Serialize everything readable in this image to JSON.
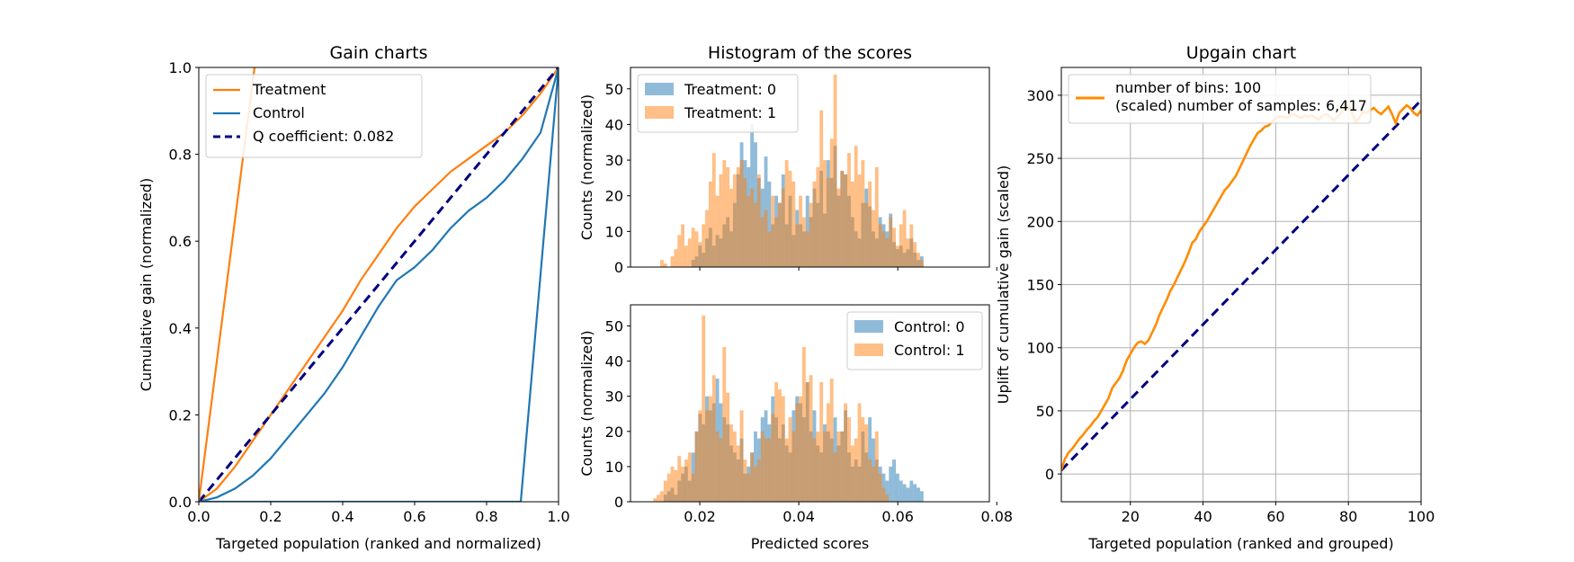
{
  "chart_data": [
    {
      "type": "line",
      "title": "Gain charts",
      "xlabel": "Targeted population (ranked and normalized)",
      "ylabel": "Cumulative gain (normalized)",
      "xlim": [
        0,
        1
      ],
      "ylim": [
        0,
        1
      ],
      "xticks": [
        "0.0",
        "0.2",
        "0.4",
        "0.6",
        "0.8",
        "1.0"
      ],
      "yticks": [
        "0.0",
        "0.2",
        "0.4",
        "0.6",
        "0.8",
        "1.0"
      ],
      "legend_position": "upper-left",
      "legend": [
        "Treatment",
        "Control",
        "Q coefficient:  0.082"
      ],
      "colors": {
        "treatment": "#ff7f0e",
        "control": "#1f77b4",
        "q": "#000080"
      },
      "series": [
        {
          "name": "Treatment",
          "role": "treatment-curve",
          "x": [
            0,
            0.05,
            0.1,
            0.15,
            0.2,
            0.25,
            0.3,
            0.35,
            0.4,
            0.45,
            0.5,
            0.55,
            0.6,
            0.65,
            0.7,
            0.75,
            0.8,
            0.85,
            0.9,
            0.95,
            1.0
          ],
          "y": [
            0,
            0.03,
            0.08,
            0.14,
            0.2,
            0.26,
            0.32,
            0.38,
            0.44,
            0.51,
            0.57,
            0.63,
            0.68,
            0.72,
            0.76,
            0.79,
            0.82,
            0.85,
            0.89,
            0.94,
            1.0
          ]
        },
        {
          "name": "Control",
          "role": "control-curve",
          "x": [
            0,
            0.05,
            0.1,
            0.15,
            0.2,
            0.25,
            0.3,
            0.35,
            0.4,
            0.45,
            0.5,
            0.55,
            0.6,
            0.65,
            0.7,
            0.75,
            0.8,
            0.85,
            0.9,
            0.95,
            1.0
          ],
          "y": [
            0,
            0.01,
            0.03,
            0.06,
            0.1,
            0.15,
            0.2,
            0.25,
            0.31,
            0.38,
            0.45,
            0.51,
            0.54,
            0.58,
            0.63,
            0.67,
            0.7,
            0.74,
            0.79,
            0.85,
            1.0
          ]
        },
        {
          "name": "Q coefficient:  0.082",
          "role": "diagonal",
          "x": [
            0,
            1
          ],
          "y": [
            0,
            1
          ]
        },
        {
          "name": "",
          "role": "treatment-ideal",
          "x": [
            0,
            0.155
          ],
          "y": [
            0,
            1
          ]
        },
        {
          "name": "",
          "role": "control-ideal",
          "x": [
            0,
            0.895,
            1.0
          ],
          "y": [
            0,
            0,
            1
          ]
        }
      ]
    },
    {
      "type": "histogram",
      "title": "Histogram of the scores",
      "xlabel": "",
      "ylabel": "Counts (normalized)",
      "xlim": [
        0.006,
        0.0785
      ],
      "ylim": [
        0,
        56
      ],
      "yticks": [
        "0",
        "10",
        "20",
        "30",
        "40",
        "50"
      ],
      "legend_position": "upper-left",
      "legend": [
        "Treatment: 0",
        "Treatment: 1"
      ],
      "bin_start": 0.0085,
      "bin_width": 0.0007,
      "series": [
        {
          "name": "Treatment: 0",
          "color": "#1f77b4",
          "values": [
            0,
            0,
            0,
            0,
            0,
            0,
            0,
            0,
            0,
            0,
            0,
            0,
            0,
            0,
            2,
            3,
            6,
            4,
            8,
            11,
            6,
            9,
            8,
            12,
            14,
            10,
            18,
            26,
            35,
            30,
            28,
            40,
            35,
            25,
            22,
            31,
            24,
            12,
            20,
            18,
            26,
            12,
            20,
            9,
            16,
            12,
            10,
            20,
            14,
            22,
            18,
            27,
            15,
            30,
            25,
            34,
            20,
            27,
            26,
            20,
            14,
            10,
            8,
            18,
            22,
            17,
            10,
            8,
            14,
            12,
            10,
            15,
            7,
            5,
            6,
            4,
            5,
            8,
            4,
            2,
            3
          ]
        },
        {
          "name": "Treatment: 1",
          "color": "#ff7f0e",
          "values": [
            0,
            0,
            0,
            0,
            0,
            2,
            1,
            0,
            3,
            5,
            9,
            12,
            6,
            8,
            11,
            10,
            7,
            12,
            16,
            24,
            32,
            20,
            26,
            30,
            28,
            22,
            26,
            28,
            30,
            25,
            20,
            22,
            18,
            26,
            14,
            16,
            10,
            20,
            14,
            18,
            22,
            30,
            27,
            24,
            12,
            20,
            14,
            10,
            18,
            24,
            28,
            44,
            30,
            25,
            36,
            54,
            22,
            27,
            26,
            32,
            24,
            34,
            26,
            30,
            18,
            24,
            16,
            28,
            12,
            10,
            8,
            14,
            11,
            6,
            12,
            16,
            8,
            12,
            7,
            4,
            2
          ]
        }
      ]
    },
    {
      "type": "histogram",
      "title": "",
      "xlabel": "Predicted scores",
      "ylabel": "Counts (normalized)",
      "xlim": [
        0.006,
        0.0785
      ],
      "ylim": [
        0,
        56
      ],
      "xticks": [
        "0.02",
        "0.04",
        "0.06",
        "0.08"
      ],
      "yticks": [
        "0",
        "10",
        "20",
        "30",
        "40",
        "50"
      ],
      "legend_position": "upper-right",
      "legend": [
        "Control: 0",
        "Control: 1"
      ],
      "bin_start": 0.0085,
      "bin_width": 0.0007,
      "series": [
        {
          "name": "Control: 0",
          "color": "#1f77b4",
          "values": [
            0,
            0,
            0,
            0,
            0,
            0,
            2,
            3,
            4,
            2,
            6,
            8,
            10,
            6,
            14,
            20,
            25,
            22,
            30,
            26,
            28,
            35,
            28,
            24,
            22,
            16,
            14,
            12,
            18,
            8,
            10,
            14,
            20,
            18,
            24,
            26,
            22,
            30,
            24,
            18,
            22,
            16,
            14,
            26,
            30,
            28,
            24,
            34,
            20,
            26,
            16,
            14,
            22,
            20,
            18,
            24,
            16,
            20,
            26,
            14,
            10,
            12,
            10,
            20,
            14,
            24,
            18,
            12,
            10,
            8,
            6,
            10,
            12,
            8,
            6,
            5,
            4,
            6,
            5,
            4,
            3
          ]
        },
        {
          "name": "Control: 1",
          "color": "#ff7f0e",
          "values": [
            0,
            0,
            0,
            1,
            2,
            3,
            6,
            8,
            10,
            9,
            13,
            10,
            12,
            14,
            8,
            20,
            26,
            53,
            26,
            30,
            36,
            20,
            18,
            44,
            31,
            22,
            20,
            16,
            26,
            12,
            8,
            14,
            10,
            12,
            20,
            18,
            18,
            25,
            34,
            32,
            30,
            18,
            24,
            20,
            28,
            30,
            44,
            34,
            36,
            18,
            20,
            34,
            20,
            28,
            35,
            14,
            20,
            20,
            28,
            24,
            16,
            18,
            28,
            24,
            22,
            12,
            10,
            20,
            8,
            4,
            2,
            0,
            0,
            0,
            0,
            0,
            0,
            0,
            0,
            0,
            0
          ]
        }
      ]
    },
    {
      "type": "line",
      "title": "Upgain chart",
      "xlabel": "Targeted population (ranked and grouped)",
      "ylabel": "Uplift of cumulative gain (scaled)",
      "xlim": [
        1,
        100
      ],
      "ylim": [
        -22,
        322
      ],
      "xticks": [
        "20",
        "40",
        "60",
        "80",
        "100"
      ],
      "yticks": [
        "0",
        "50",
        "100",
        "150",
        "200",
        "250",
        "300"
      ],
      "grid": true,
      "legend_position": "upper-left",
      "legend": [
        "number of bins: 100\n(scaled) number of samples: 6,417"
      ],
      "series": [
        {
          "name": "number of bins: 100",
          "color": "#ff8c00",
          "x": [
            1,
            2,
            3,
            4,
            5,
            6,
            7,
            8,
            9,
            10,
            11,
            12,
            13,
            14,
            15,
            16,
            17,
            18,
            19,
            20,
            21,
            22,
            23,
            24,
            25,
            26,
            27,
            28,
            29,
            30,
            31,
            32,
            33,
            34,
            35,
            36,
            37,
            38,
            39,
            40,
            41,
            42,
            43,
            44,
            45,
            46,
            47,
            48,
            49,
            50,
            51,
            52,
            53,
            54,
            55,
            56,
            57,
            58,
            59,
            60,
            61,
            62,
            63,
            64,
            65,
            66,
            67,
            68,
            69,
            70,
            71,
            72,
            73,
            74,
            75,
            76,
            77,
            78,
            79,
            80,
            81,
            82,
            83,
            84,
            85,
            86,
            87,
            88,
            89,
            90,
            91,
            92,
            93,
            94,
            95,
            96,
            97,
            98,
            99,
            100
          ],
          "y": [
            3,
            12,
            17,
            20,
            24,
            28,
            31,
            35,
            38,
            42,
            45,
            50,
            55,
            60,
            68,
            72,
            76,
            82,
            90,
            95,
            100,
            104,
            105,
            103,
            106,
            112,
            118,
            126,
            132,
            138,
            145,
            150,
            156,
            162,
            168,
            175,
            183,
            186,
            192,
            196,
            200,
            205,
            210,
            215,
            220,
            225,
            228,
            232,
            236,
            242,
            248,
            254,
            260,
            265,
            270,
            272,
            275,
            276,
            279,
            282,
            283,
            283,
            282,
            284,
            285,
            283,
            282,
            284,
            283,
            284,
            282,
            281,
            284,
            285,
            283,
            280,
            283,
            286,
            290,
            292,
            286,
            279,
            282,
            287,
            286,
            288,
            290,
            287,
            285,
            288,
            291,
            285,
            278,
            286,
            289,
            292,
            290,
            286,
            284,
            288
          ]
        },
        {
          "name": "",
          "color": "#000080",
          "x": [
            1,
            100
          ],
          "y": [
            3,
            296
          ]
        }
      ]
    }
  ]
}
